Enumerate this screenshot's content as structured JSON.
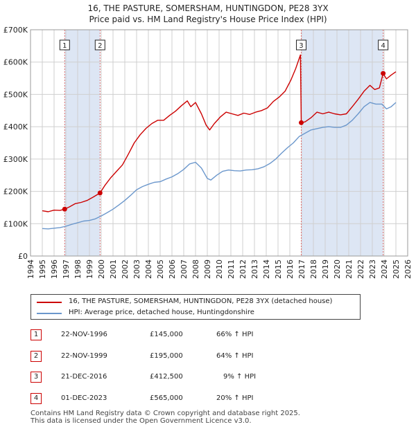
{
  "title_line1": "16, THE PASTURE, SOMERSHAM, HUNTINGDON, PE28 3YX",
  "title_line2": "Price paid vs. HM Land Registry's House Price Index (HPI)",
  "colors": {
    "red": "#cc0000",
    "blue": "#6b97cc",
    "shade": "#dde6f4",
    "grid": "#cfcfcf",
    "vline": "#e07070"
  },
  "legend": [
    {
      "label": "16, THE PASTURE, SOMERSHAM, HUNTINGDON, PE28 3YX (detached house)",
      "color": "#cc0000"
    },
    {
      "label": "HPI: Average price, detached house, Huntingdonshire",
      "color": "#6b97cc"
    }
  ],
  "transactions": [
    {
      "num": "1",
      "date": "22-NOV-1996",
      "price": "£145,000",
      "hpi": "66% ↑ HPI"
    },
    {
      "num": "2",
      "date": "22-NOV-1999",
      "price": "£195,000",
      "hpi": "64% ↑ HPI"
    },
    {
      "num": "3",
      "date": "21-DEC-2016",
      "price": "£412,500",
      "hpi": "9% ↑ HPI"
    },
    {
      "num": "4",
      "date": "01-DEC-2023",
      "price": "£565,000",
      "hpi": "20% ↑ HPI"
    }
  ],
  "footer_line1": "Contains HM Land Registry data © Crown copyright and database right 2025.",
  "footer_line2": "This data is licensed under the Open Government Licence v3.0.",
  "chart_data": {
    "type": "line",
    "title": "16, THE PASTURE, SOMERSHAM, HUNTINGDON, PE28 3YX",
    "subtitle": "Price paid vs. HM Land Registry's House Price Index (HPI)",
    "xlabel": "",
    "ylabel": "",
    "xlim": [
      1994,
      2026
    ],
    "ylim": [
      0,
      700000
    ],
    "grid": true,
    "legend_position": "below",
    "x_ticks": [
      1994,
      1995,
      1996,
      1997,
      1998,
      1999,
      2000,
      2001,
      2002,
      2003,
      2004,
      2005,
      2006,
      2007,
      2008,
      2009,
      2010,
      2011,
      2012,
      2013,
      2014,
      2015,
      2016,
      2017,
      2018,
      2019,
      2020,
      2021,
      2022,
      2023,
      2024,
      2025,
      2026
    ],
    "y_ticks": [
      0,
      100000,
      200000,
      300000,
      400000,
      500000,
      600000,
      700000
    ],
    "y_tick_labels": [
      "£0",
      "£100K",
      "£200K",
      "£300K",
      "£400K",
      "£500K",
      "£600K",
      "£700K"
    ],
    "shaded_ranges": [
      [
        1996.9,
        1999.9
      ],
      [
        2016.97,
        2023.92
      ]
    ],
    "sales": [
      {
        "label": "1",
        "x": 1996.9,
        "y": 145000
      },
      {
        "label": "2",
        "x": 1999.9,
        "y": 195000
      },
      {
        "label": "3",
        "x": 2016.97,
        "y": 412500
      },
      {
        "label": "4",
        "x": 2023.92,
        "y": 565000
      }
    ],
    "series": [
      {
        "name": "16, THE PASTURE, SOMERSHAM, HUNTINGDON, PE28 3YX (detached house)",
        "color": "#cc0000",
        "points": [
          [
            1995,
            140000
          ],
          [
            1995.5,
            137000
          ],
          [
            1996,
            142000
          ],
          [
            1996.5,
            141000
          ],
          [
            1996.9,
            145000
          ],
          [
            1997.3,
            152000
          ],
          [
            1997.8,
            162000
          ],
          [
            1998.3,
            166000
          ],
          [
            1998.8,
            172000
          ],
          [
            1999.3,
            182000
          ],
          [
            1999.9,
            195000
          ],
          [
            2000.3,
            218000
          ],
          [
            2000.8,
            242000
          ],
          [
            2001.3,
            262000
          ],
          [
            2001.8,
            282000
          ],
          [
            2002.3,
            315000
          ],
          [
            2002.8,
            350000
          ],
          [
            2003.3,
            375000
          ],
          [
            2003.8,
            395000
          ],
          [
            2004.3,
            410000
          ],
          [
            2004.8,
            420000
          ],
          [
            2005.3,
            420000
          ],
          [
            2005.8,
            435000
          ],
          [
            2006.3,
            448000
          ],
          [
            2006.8,
            465000
          ],
          [
            2007.3,
            480000
          ],
          [
            2007.6,
            462000
          ],
          [
            2008.0,
            475000
          ],
          [
            2008.5,
            440000
          ],
          [
            2008.9,
            405000
          ],
          [
            2009.2,
            390000
          ],
          [
            2009.6,
            410000
          ],
          [
            2010.1,
            430000
          ],
          [
            2010.6,
            445000
          ],
          [
            2011.1,
            440000
          ],
          [
            2011.6,
            435000
          ],
          [
            2012.1,
            442000
          ],
          [
            2012.6,
            438000
          ],
          [
            2013.1,
            445000
          ],
          [
            2013.6,
            450000
          ],
          [
            2014.1,
            458000
          ],
          [
            2014.6,
            478000
          ],
          [
            2015.1,
            492000
          ],
          [
            2015.6,
            510000
          ],
          [
            2016.1,
            545000
          ],
          [
            2016.5,
            580000
          ],
          [
            2016.9,
            622000
          ],
          [
            2016.97,
            412500
          ],
          [
            2017.3,
            415000
          ],
          [
            2017.8,
            428000
          ],
          [
            2018.3,
            445000
          ],
          [
            2018.8,
            440000
          ],
          [
            2019.3,
            445000
          ],
          [
            2019.8,
            440000
          ],
          [
            2020.3,
            437000
          ],
          [
            2020.8,
            440000
          ],
          [
            2021.3,
            462000
          ],
          [
            2021.8,
            485000
          ],
          [
            2022.3,
            510000
          ],
          [
            2022.8,
            528000
          ],
          [
            2023.2,
            515000
          ],
          [
            2023.6,
            520000
          ],
          [
            2023.92,
            565000
          ],
          [
            2024.2,
            548000
          ],
          [
            2024.6,
            560000
          ],
          [
            2025.0,
            570000
          ]
        ]
      },
      {
        "name": "HPI: Average price, detached house, Huntingdonshire",
        "color": "#6b97cc",
        "points": [
          [
            1995,
            85000
          ],
          [
            1995.5,
            84000
          ],
          [
            1996,
            86000
          ],
          [
            1996.5,
            88000
          ],
          [
            1997,
            92000
          ],
          [
            1997.5,
            98000
          ],
          [
            1998,
            103000
          ],
          [
            1998.5,
            108000
          ],
          [
            1999,
            110000
          ],
          [
            1999.5,
            115000
          ],
          [
            2000,
            124000
          ],
          [
            2000.5,
            134000
          ],
          [
            2001,
            145000
          ],
          [
            2001.5,
            158000
          ],
          [
            2002,
            172000
          ],
          [
            2002.5,
            188000
          ],
          [
            2003,
            205000
          ],
          [
            2003.5,
            215000
          ],
          [
            2004,
            222000
          ],
          [
            2004.5,
            228000
          ],
          [
            2005,
            230000
          ],
          [
            2005.5,
            238000
          ],
          [
            2006,
            245000
          ],
          [
            2006.5,
            255000
          ],
          [
            2007,
            268000
          ],
          [
            2007.5,
            285000
          ],
          [
            2008,
            290000
          ],
          [
            2008.5,
            272000
          ],
          [
            2009,
            240000
          ],
          [
            2009.3,
            235000
          ],
          [
            2009.8,
            250000
          ],
          [
            2010.3,
            262000
          ],
          [
            2010.8,
            266000
          ],
          [
            2011.3,
            264000
          ],
          [
            2011.8,
            263000
          ],
          [
            2012.3,
            266000
          ],
          [
            2012.8,
            267000
          ],
          [
            2013.3,
            270000
          ],
          [
            2013.8,
            276000
          ],
          [
            2014.3,
            286000
          ],
          [
            2014.8,
            300000
          ],
          [
            2015.3,
            318000
          ],
          [
            2015.8,
            335000
          ],
          [
            2016.3,
            350000
          ],
          [
            2016.8,
            370000
          ],
          [
            2017.3,
            380000
          ],
          [
            2017.8,
            390000
          ],
          [
            2018.3,
            394000
          ],
          [
            2018.8,
            398000
          ],
          [
            2019.3,
            400000
          ],
          [
            2019.8,
            398000
          ],
          [
            2020.3,
            398000
          ],
          [
            2020.8,
            405000
          ],
          [
            2021.3,
            420000
          ],
          [
            2021.8,
            440000
          ],
          [
            2022.3,
            462000
          ],
          [
            2022.8,
            475000
          ],
          [
            2023.3,
            470000
          ],
          [
            2023.8,
            470000
          ],
          [
            2024.2,
            455000
          ],
          [
            2024.6,
            462000
          ],
          [
            2025.0,
            475000
          ]
        ]
      }
    ]
  }
}
